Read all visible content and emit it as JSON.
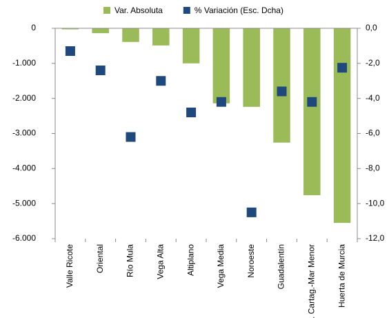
{
  "chart_data": {
    "type": "bar",
    "categories": [
      "Valle Ricote",
      "Oriental",
      "Río Mula",
      "Vega Alta",
      "Altiplano",
      "Vega Media",
      "Noroeste",
      "Guadalentín",
      "C. Cartag.-Mar Menor",
      "Huerta de Murcia"
    ],
    "series": [
      {
        "name": "Var. Absoluta",
        "color": "#9bbb59",
        "type": "bar",
        "values": [
          -30,
          -140,
          -390,
          -490,
          -1000,
          -2140,
          -2240,
          -3260,
          -4760,
          -5550
        ]
      },
      {
        "name": "% Variación (Esc. Dcha)",
        "color": "#1f497d",
        "type": "scatter",
        "axis": "y2",
        "values": [
          -1.3,
          -2.4,
          -6.2,
          -3.0,
          -4.8,
          -4.2,
          -10.5,
          -3.6,
          -4.2,
          -2.25
        ]
      }
    ],
    "ylim": [
      -6000,
      0
    ],
    "yticks": [
      0,
      {
        "value": -1000,
        "label": "-1.000"
      },
      {
        "value": -2000,
        "label": "-2.000"
      },
      {
        "value": -3000,
        "label": "-3.000"
      },
      {
        "value": -4000,
        "label": "-4.000"
      },
      {
        "value": -5000,
        "label": "-5.000"
      },
      {
        "value": -6000,
        "label": "-6.000"
      }
    ],
    "y2lim": [
      -12,
      0
    ],
    "y2ticks": [
      {
        "value": 0,
        "label": "0,0"
      },
      {
        "value": -2,
        "label": "-2,0"
      },
      {
        "value": -4,
        "label": "-4,0"
      },
      {
        "value": -6,
        "label": "-6,0"
      },
      {
        "value": -8,
        "label": "-8,0"
      },
      {
        "value": -10,
        "label": "-10,0"
      },
      {
        "value": -12,
        "label": "-12,0"
      }
    ],
    "legend": "top"
  }
}
